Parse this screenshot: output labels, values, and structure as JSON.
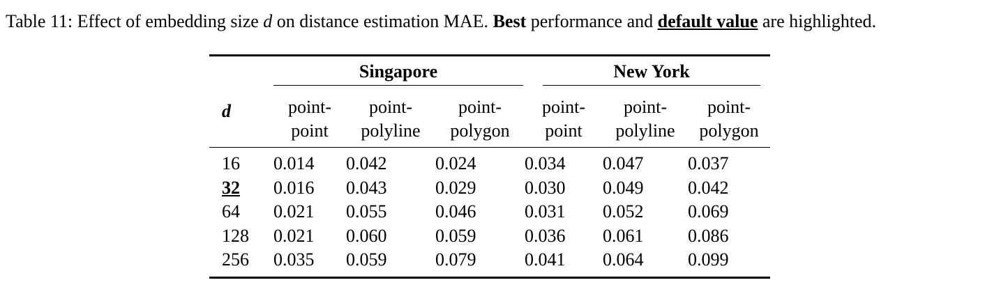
{
  "caption": {
    "prefix": "Table 11: Effect of embedding size ",
    "symbol": "d",
    "middle": " on distance estimation MAE. ",
    "best": "Best",
    "between": " performance and ",
    "default": "default value",
    "suffix": " are highlighted."
  },
  "header": {
    "d_label": "d",
    "groups": [
      "Singapore",
      "New York"
    ],
    "columns": [
      [
        "point-",
        "point"
      ],
      [
        "point-",
        "polyline"
      ],
      [
        "point-",
        "polygon"
      ],
      [
        "point-",
        "point"
      ],
      [
        "point-",
        "polyline"
      ],
      [
        "point-",
        "polygon"
      ]
    ]
  },
  "rows": [
    {
      "d": "16",
      "values": [
        "0.014",
        "0.042",
        "0.024",
        "0.034",
        "0.047",
        "0.037"
      ],
      "bold": [
        true,
        true,
        true,
        false,
        true,
        true
      ],
      "d_default": false
    },
    {
      "d": "32",
      "values": [
        "0.016",
        "0.043",
        "0.029",
        "0.030",
        "0.049",
        "0.042"
      ],
      "bold": [
        false,
        false,
        false,
        true,
        false,
        false
      ],
      "d_default": true
    },
    {
      "d": "64",
      "values": [
        "0.021",
        "0.055",
        "0.046",
        "0.031",
        "0.052",
        "0.069"
      ],
      "bold": [
        false,
        false,
        false,
        false,
        false,
        false
      ],
      "d_default": false
    },
    {
      "d": "128",
      "values": [
        "0.021",
        "0.060",
        "0.059",
        "0.036",
        "0.061",
        "0.086"
      ],
      "bold": [
        false,
        false,
        false,
        false,
        false,
        false
      ],
      "d_default": false
    },
    {
      "d": "256",
      "values": [
        "0.035",
        "0.059",
        "0.079",
        "0.041",
        "0.064",
        "0.099"
      ],
      "bold": [
        false,
        false,
        false,
        false,
        false,
        false
      ],
      "d_default": false
    }
  ]
}
